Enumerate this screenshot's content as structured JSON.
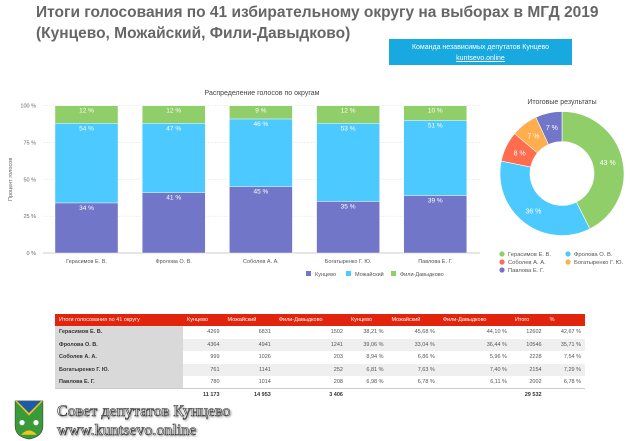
{
  "header": {
    "title_line1": "Итоги  голосования по 41 избирательному округу на выборах в МГД 2019",
    "title_line2": "(Кунцево, Можайский, Фили-Давыдково)"
  },
  "banner": {
    "text": "Команда независимых депутатов Кунцево",
    "link": "kuntsevo.online",
    "color": "#17a9e0"
  },
  "chart_data": [
    {
      "type": "bar",
      "stacked": true,
      "title": "Распределение голосов по округам",
      "ylabel": "Процент голосов",
      "ylim": [
        0,
        100
      ],
      "yticks": [
        "0 %",
        "25 %",
        "50 %",
        "75 %",
        "100 %"
      ],
      "grid": true,
      "legend": "bottom",
      "categories": [
        "Герасимов Е. В.",
        "Фролова О. В.",
        "Соболев А. А.",
        "Богатыренко Г. Ю.",
        "Павлова Е. Г."
      ],
      "series": [
        {
          "name": "Кунцево",
          "color": "#7276c8",
          "values": [
            34,
            41,
            45,
            35,
            39
          ]
        },
        {
          "name": "Можайский",
          "color": "#4cc9ff",
          "values": [
            54,
            47,
            46,
            53,
            51
          ]
        },
        {
          "name": "Фили-Давыдково",
          "color": "#8fce69",
          "values": [
            12,
            12,
            9,
            12,
            10
          ]
        }
      ]
    },
    {
      "type": "pie",
      "donut": true,
      "title": "Итоговые результаты",
      "legend": "bottom",
      "labels": [
        "Герасимов Е. В.",
        "Фролова О. В.",
        "Соболев А. А.",
        "Богатыренко Г. Ю.",
        "Павлова Е. Г."
      ],
      "values": [
        43,
        36,
        8,
        7,
        7
      ],
      "colors": [
        "#8fce69",
        "#4cc9ff",
        "#ff6c4e",
        "#ffad4d",
        "#7276c8"
      ]
    }
  ],
  "table": {
    "headers": [
      "Итоги голосования по 41 округу",
      "Кунцево",
      "Можайский",
      "Фили-Давыдково",
      "Кунцево",
      "Можайский",
      "Фили-Давыдково",
      "Итого",
      "%"
    ],
    "rows": [
      [
        "Герасимов Е. В.",
        "4269",
        "6831",
        "1502",
        "38,21 %",
        "45,68 %",
        "44,10 %",
        "12602",
        "42,67 %"
      ],
      [
        "Фролова О. В.",
        "4364",
        "4941",
        "1241",
        "39,06 %",
        "33,04 %",
        "36,44 %",
        "10546",
        "35,71 %"
      ],
      [
        "Соболев А. А.",
        "999",
        "1026",
        "203",
        "8,94 %",
        "6,86 %",
        "5,96 %",
        "2228",
        "7,54 %"
      ],
      [
        "Богатыренко Г. Ю.",
        "761",
        "1141",
        "252",
        "6,81 %",
        "7,63 %",
        "7,40 %",
        "2154",
        "7,29 %"
      ],
      [
        "Павлова Е. Г.",
        "780",
        "1014",
        "208",
        "6,98 %",
        "6,78 %",
        "6,11 %",
        "2002",
        "6,78 %"
      ]
    ],
    "totals": [
      "",
      "11 173",
      "14 953",
      "3 406",
      "",
      "",
      "",
      "29 532",
      ""
    ]
  },
  "footer": {
    "line1": "Совет депутатов Кунцево",
    "line2": "www.kuntsevo.online"
  }
}
